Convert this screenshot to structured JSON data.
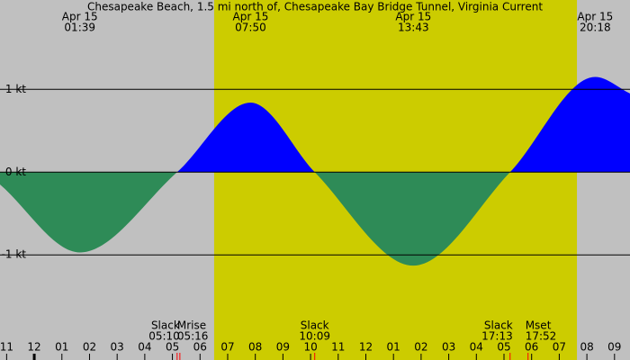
{
  "chart_data": {
    "type": "area",
    "title": "Chesapeake Beach, 1.5 mi north of, Chesapeake Bay Bridge Tunnel, Virginia Current",
    "x": [
      -1.24,
      1.65,
      5.17,
      7.83,
      10.15,
      13.72,
      17.22,
      20.3,
      21.56
    ],
    "values": [
      -0.15,
      -0.97,
      0,
      0.84,
      0,
      -1.13,
      0,
      1.15,
      0.95
    ],
    "flood_color": "#0000ff",
    "ebb_color": "#2e8b57",
    "night_color": "#c0c0c0",
    "daylight_color": "#cccc00",
    "daylight": [
      6.51,
      19.64
    ],
    "xlim": [
      -1.24,
      21.56
    ],
    "ylim": [
      -2.27,
      2.08
    ],
    "yticks": [
      {
        "value": 1,
        "label": "1 kt"
      },
      {
        "value": 0,
        "label": "0 kt"
      },
      {
        "value": -1,
        "label": "-1 kt"
      }
    ],
    "xticks": [
      {
        "value": -1,
        "label": "11"
      },
      {
        "value": 0,
        "label": "12"
      },
      {
        "value": 1,
        "label": "01"
      },
      {
        "value": 2,
        "label": "02"
      },
      {
        "value": 3,
        "label": "03"
      },
      {
        "value": 4,
        "label": "04"
      },
      {
        "value": 5,
        "label": "05"
      },
      {
        "value": 6,
        "label": "06"
      },
      {
        "value": 7,
        "label": "07"
      },
      {
        "value": 8,
        "label": "08"
      },
      {
        "value": 9,
        "label": "09"
      },
      10,
      11,
      12,
      {
        "value": 13,
        "label": "01"
      },
      {
        "value": 14,
        "label": "02"
      },
      {
        "value": 15,
        "label": "03"
      },
      {
        "value": 16,
        "label": "04"
      },
      {
        "value": 17,
        "label": "05"
      },
      {
        "value": 18,
        "label": "06"
      },
      {
        "value": 19,
        "label": "07"
      },
      {
        "value": 20,
        "label": "08"
      },
      {
        "value": 21,
        "label": "09"
      }
    ],
    "extremes": [
      {
        "date": "Apr 15",
        "time": "01:39",
        "x": 1.65
      },
      {
        "date": "Apr 15",
        "time": "07:50",
        "x": 7.83
      },
      {
        "date": "Apr 15",
        "time": "13:43",
        "x": 13.72
      },
      {
        "date": "Apr 15",
        "time": "20:18",
        "x": 20.3
      }
    ],
    "events": [
      {
        "name": "Slack",
        "time": "05:10",
        "x": 5.17
      },
      {
        "name": "Mrise",
        "time": "05:16",
        "x": 5.27
      },
      {
        "name": "Slack",
        "time": "10:09",
        "x": 10.15
      },
      {
        "name": "Slack",
        "time": "17:13",
        "x": 17.22
      },
      {
        "name": "Mset",
        "time": "17:52",
        "x": 17.87
      }
    ]
  }
}
